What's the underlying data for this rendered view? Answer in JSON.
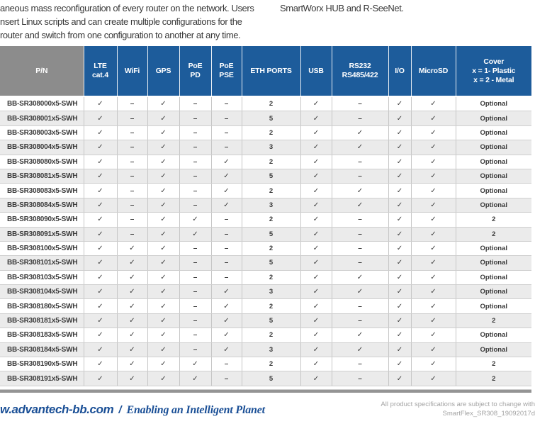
{
  "intro": {
    "left_lines": [
      "aneous mass reconfiguration of every router on the network. Users",
      "nsert Linux scripts and can create multiple configurations for the",
      "router and switch from one configuration to another at any time."
    ],
    "right_line": "SmartWorx HUB and R-SeeNet."
  },
  "table": {
    "columns": [
      {
        "id": "pn",
        "lines": [
          "P/N"
        ]
      },
      {
        "id": "lte",
        "lines": [
          "LTE",
          "cat.4"
        ]
      },
      {
        "id": "wifi",
        "lines": [
          "WiFi"
        ]
      },
      {
        "id": "gps",
        "lines": [
          "GPS"
        ]
      },
      {
        "id": "poe-pd",
        "lines": [
          "PoE",
          "PD"
        ]
      },
      {
        "id": "poe-pse",
        "lines": [
          "PoE",
          "PSE"
        ]
      },
      {
        "id": "eth-ports",
        "lines": [
          "ETH PORTS"
        ]
      },
      {
        "id": "usb",
        "lines": [
          "USB"
        ]
      },
      {
        "id": "rs232",
        "lines": [
          "RS232",
          "RS485/422"
        ]
      },
      {
        "id": "io",
        "lines": [
          "I/O"
        ]
      },
      {
        "id": "microsd",
        "lines": [
          "MicroSD"
        ]
      },
      {
        "id": "cover",
        "lines": [
          "Cover",
          "x = 1- Plastic",
          "x = 2 - Metal"
        ]
      }
    ],
    "check_glyph": "✓",
    "dash_glyph": "–",
    "rows": [
      {
        "pn": "BB-SR308000x5-SWH",
        "values": [
          "✓",
          "–",
          "✓",
          "–",
          "–",
          "2",
          "✓",
          "–",
          "✓",
          "✓",
          "Optional"
        ]
      },
      {
        "pn": "BB-SR308001x5-SWH",
        "values": [
          "✓",
          "–",
          "✓",
          "–",
          "–",
          "5",
          "✓",
          "–",
          "✓",
          "✓",
          "Optional"
        ]
      },
      {
        "pn": "BB-SR308003x5-SWH",
        "values": [
          "✓",
          "–",
          "✓",
          "–",
          "–",
          "2",
          "✓",
          "✓",
          "✓",
          "✓",
          "Optional"
        ]
      },
      {
        "pn": "BB-SR308004x5-SWH",
        "values": [
          "✓",
          "–",
          "✓",
          "–",
          "–",
          "3",
          "✓",
          "✓",
          "✓",
          "✓",
          "Optional"
        ]
      },
      {
        "pn": "BB-SR308080x5-SWH",
        "values": [
          "✓",
          "–",
          "✓",
          "–",
          "✓",
          "2",
          "✓",
          "–",
          "✓",
          "✓",
          "Optional"
        ]
      },
      {
        "pn": "BB-SR308081x5-SWH",
        "values": [
          "✓",
          "–",
          "✓",
          "–",
          "✓",
          "5",
          "✓",
          "–",
          "✓",
          "✓",
          "Optional"
        ]
      },
      {
        "pn": "BB-SR308083x5-SWH",
        "values": [
          "✓",
          "–",
          "✓",
          "–",
          "✓",
          "2",
          "✓",
          "✓",
          "✓",
          "✓",
          "Optional"
        ]
      },
      {
        "pn": "BB-SR308084x5-SWH",
        "values": [
          "✓",
          "–",
          "✓",
          "–",
          "✓",
          "3",
          "✓",
          "✓",
          "✓",
          "✓",
          "Optional"
        ]
      },
      {
        "pn": "BB-SR308090x5-SWH",
        "values": [
          "✓",
          "–",
          "✓",
          "✓",
          "–",
          "2",
          "✓",
          "–",
          "✓",
          "✓",
          "2"
        ]
      },
      {
        "pn": "BB-SR308091x5-SWH",
        "values": [
          "✓",
          "–",
          "✓",
          "✓",
          "–",
          "5",
          "✓",
          "–",
          "✓",
          "✓",
          "2"
        ]
      },
      {
        "pn": "BB-SR308100x5-SWH",
        "values": [
          "✓",
          "✓",
          "✓",
          "–",
          "–",
          "2",
          "✓",
          "–",
          "✓",
          "✓",
          "Optional"
        ]
      },
      {
        "pn": "BB-SR308101x5-SWH",
        "values": [
          "✓",
          "✓",
          "✓",
          "–",
          "–",
          "5",
          "✓",
          "–",
          "✓",
          "✓",
          "Optional"
        ]
      },
      {
        "pn": "BB-SR308103x5-SWH",
        "values": [
          "✓",
          "✓",
          "✓",
          "–",
          "–",
          "2",
          "✓",
          "✓",
          "✓",
          "✓",
          "Optional"
        ]
      },
      {
        "pn": "BB-SR308104x5-SWH",
        "values": [
          "✓",
          "✓",
          "✓",
          "–",
          "✓",
          "3",
          "✓",
          "✓",
          "✓",
          "✓",
          "Optional"
        ]
      },
      {
        "pn": "BB-SR308180x5-SWH",
        "values": [
          "✓",
          "✓",
          "✓",
          "–",
          "✓",
          "2",
          "✓",
          "–",
          "✓",
          "✓",
          "Optional"
        ]
      },
      {
        "pn": "BB-SR308181x5-SWH",
        "values": [
          "✓",
          "✓",
          "✓",
          "–",
          "✓",
          "5",
          "✓",
          "–",
          "✓",
          "✓",
          "2"
        ]
      },
      {
        "pn": "BB-SR308183x5-SWH",
        "values": [
          "✓",
          "✓",
          "✓",
          "–",
          "✓",
          "2",
          "✓",
          "✓",
          "✓",
          "✓",
          "Optional"
        ]
      },
      {
        "pn": "BB-SR308184x5-SWH",
        "values": [
          "✓",
          "✓",
          "✓",
          "–",
          "✓",
          "3",
          "✓",
          "✓",
          "✓",
          "✓",
          "Optional"
        ]
      },
      {
        "pn": "BB-SR308190x5-SWH",
        "values": [
          "✓",
          "✓",
          "✓",
          "✓",
          "–",
          "2",
          "✓",
          "–",
          "✓",
          "✓",
          "2"
        ]
      },
      {
        "pn": "BB-SR308191x5-SWH",
        "values": [
          "✓",
          "✓",
          "✓",
          "✓",
          "–",
          "5",
          "✓",
          "–",
          "✓",
          "✓",
          "2"
        ]
      }
    ]
  },
  "footer": {
    "website": "w.advantech-bb.com",
    "separator": "/",
    "tagline": "Enabling an Intelligent Planet",
    "note_line1": "All product specifications are subject to change with",
    "note_line2": "SmartFlex_SR308_19092017d"
  },
  "colors": {
    "header_blue": "#1d5c9b",
    "header_gray": "#8c8c8c",
    "row_alt": "#ebebeb",
    "brand_blue": "#1a4f96",
    "footer_note_gray": "#a3a3a3"
  }
}
